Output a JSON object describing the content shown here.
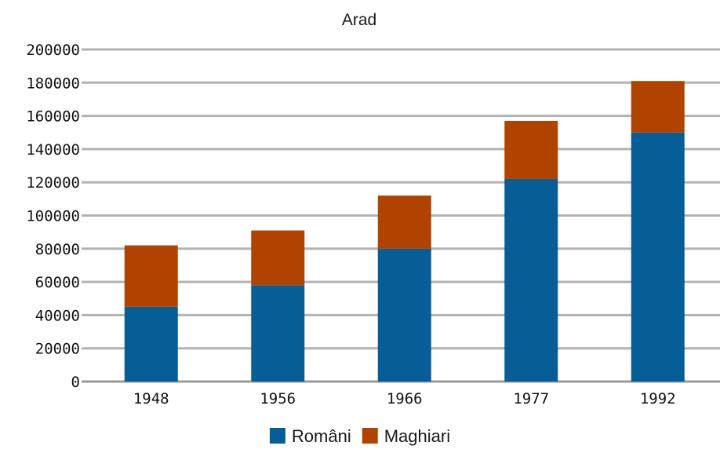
{
  "chart_data": {
    "type": "bar",
    "stacked": true,
    "title": "Arad",
    "xlabel": "",
    "ylabel": "",
    "categories": [
      "1948",
      "1956",
      "1966",
      "1977",
      "1992"
    ],
    "series": [
      {
        "name": "Români",
        "color": "#075d95",
        "values": [
          45000,
          58000,
          80000,
          122000,
          150000
        ]
      },
      {
        "name": "Maghiari",
        "color": "#b14300",
        "values": [
          37000,
          33000,
          32000,
          35000,
          31000
        ]
      }
    ],
    "ylim": [
      0,
      200000
    ],
    "yticks": [
      "0",
      "20000",
      "40000",
      "60000",
      "80000",
      "100000",
      "120000",
      "140000",
      "160000",
      "180000",
      "200000"
    ],
    "grid": true,
    "gridline_color": "#b3b3b3",
    "legend": "bottom"
  }
}
